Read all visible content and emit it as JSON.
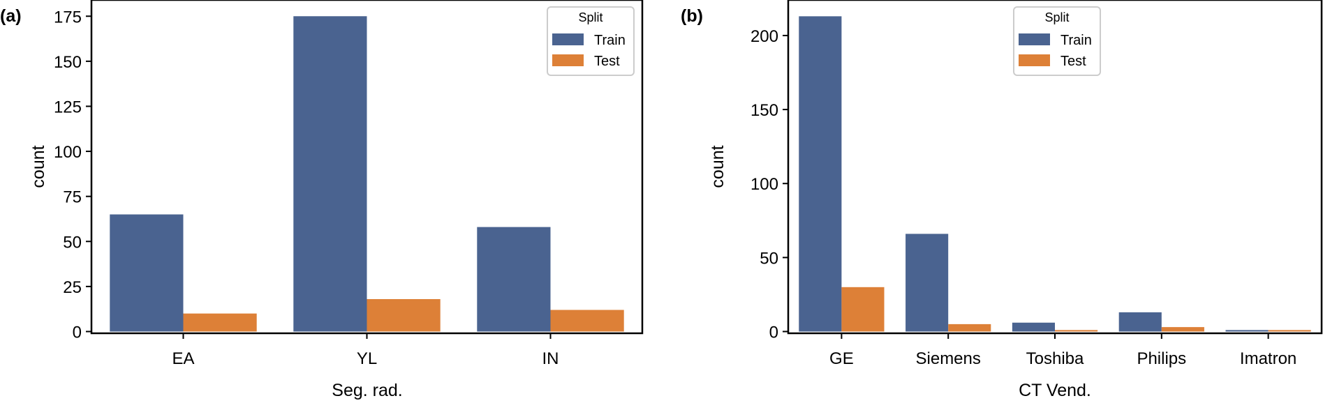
{
  "colors": {
    "train": "#4a6390",
    "test": "#dd8037",
    "axis": "#000000"
  },
  "chart_data": [
    {
      "type": "bar",
      "panel_label": "(a)",
      "categories": [
        "EA",
        "YL",
        "IN"
      ],
      "series": [
        {
          "name": "Train",
          "values": [
            65,
            175,
            58
          ]
        },
        {
          "name": "Test",
          "values": [
            10,
            18,
            12
          ]
        }
      ],
      "xlabel": "Seg. rad.",
      "ylabel": "count",
      "ylim": [
        0,
        184
      ],
      "yticks": [
        0,
        25,
        50,
        75,
        100,
        125,
        150,
        175
      ],
      "ytick_labels": [
        "0",
        "25",
        "50",
        "75",
        "100",
        "125",
        "150",
        "175"
      ],
      "legend": {
        "title": "Split",
        "labels": [
          "Train",
          "Test"
        ],
        "position": "top-right"
      },
      "grid": false
    },
    {
      "type": "bar",
      "panel_label": "(b)",
      "categories": [
        "GE",
        "Siemens",
        "Toshiba",
        "Philips",
        "Imatron"
      ],
      "series": [
        {
          "name": "Train",
          "values": [
            213,
            66,
            6,
            13,
            1
          ]
        },
        {
          "name": "Test",
          "values": [
            30,
            5,
            1,
            3,
            1
          ]
        }
      ],
      "xlabel": "CT Vend.",
      "ylabel": "count",
      "ylim": [
        0,
        224
      ],
      "yticks": [
        0,
        50,
        100,
        150,
        200
      ],
      "ytick_labels": [
        "0",
        "50",
        "100",
        "150",
        "200"
      ],
      "legend": {
        "title": "Split",
        "labels": [
          "Train",
          "Test"
        ],
        "position": "top-center"
      },
      "grid": false
    }
  ]
}
